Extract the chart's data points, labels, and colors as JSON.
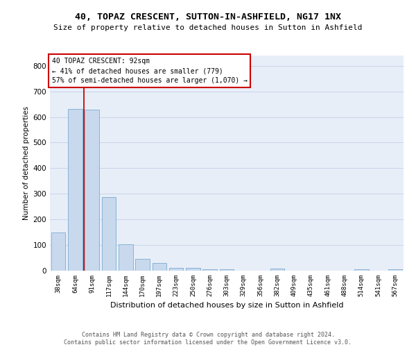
{
  "title": "40, TOPAZ CRESCENT, SUTTON-IN-ASHFIELD, NG17 1NX",
  "subtitle": "Size of property relative to detached houses in Sutton in Ashfield",
  "xlabel": "Distribution of detached houses by size in Sutton in Ashfield",
  "ylabel": "Number of detached properties",
  "footer1": "Contains HM Land Registry data © Crown copyright and database right 2024.",
  "footer2": "Contains public sector information licensed under the Open Government Licence v3.0.",
  "bar_color": "#c8d9ee",
  "bar_edge_color": "#7aaad0",
  "categories": [
    "38sqm",
    "64sqm",
    "91sqm",
    "117sqm",
    "144sqm",
    "170sqm",
    "197sqm",
    "223sqm",
    "250sqm",
    "276sqm",
    "303sqm",
    "329sqm",
    "356sqm",
    "382sqm",
    "409sqm",
    "435sqm",
    "461sqm",
    "488sqm",
    "514sqm",
    "541sqm",
    "567sqm"
  ],
  "values": [
    148,
    632,
    628,
    288,
    104,
    47,
    30,
    11,
    11,
    5,
    5,
    0,
    0,
    8,
    0,
    0,
    0,
    0,
    5,
    0,
    5
  ],
  "red_line_x": 1.5,
  "annotation_title": "40 TOPAZ CRESCENT: 92sqm",
  "annotation_line1": "← 41% of detached houses are smaller (779)",
  "annotation_line2": "57% of semi-detached houses are larger (1,070) →",
  "red_line_color": "#cc0000",
  "annotation_box_facecolor": "#ffffff",
  "annotation_border_color": "#cc0000",
  "ylim": [
    0,
    840
  ],
  "yticks": [
    0,
    100,
    200,
    300,
    400,
    500,
    600,
    700,
    800
  ],
  "grid_color": "#c8d4e8",
  "background_color": "#e8eef8"
}
